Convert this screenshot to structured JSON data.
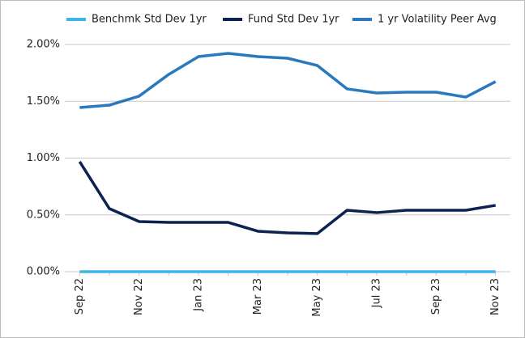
{
  "chart_data": {
    "type": "line",
    "categories": [
      "Sep 22",
      null,
      "Nov 22",
      null,
      "Jan 23",
      null,
      "Mar 23",
      null,
      "May 23",
      null,
      "Jul 23",
      null,
      "Sep 23",
      null,
      "Nov 23"
    ],
    "series": [
      {
        "name": "Benchmk Std Dev 1yr",
        "color": "#3fb4e6",
        "values": [
          0,
          0,
          0,
          0,
          0,
          0,
          0,
          0,
          0,
          0,
          0,
          0,
          0,
          0,
          0
        ]
      },
      {
        "name": "Fund Std Dev 1yr",
        "color": "#0c2352",
        "values": [
          0.968,
          0.555,
          0.441,
          0.434,
          0.434,
          0.434,
          0.356,
          0.342,
          0.335,
          0.541,
          0.52,
          0.541,
          0.541,
          0.541,
          0.584
        ]
      },
      {
        "name": "1 yr Volatility Peer Avg",
        "color": "#2a78bd",
        "values": [
          1.445,
          1.466,
          1.545,
          1.737,
          1.893,
          1.922,
          1.893,
          1.879,
          1.815,
          1.609,
          1.573,
          1.58,
          1.58,
          1.537,
          1.673
        ]
      }
    ],
    "ylim": [
      0,
      2
    ],
    "yticks": [
      {
        "value": 0,
        "label": "0.00%"
      },
      {
        "value": 0.5,
        "label": "0.50%"
      },
      {
        "value": 1,
        "label": "1.00%"
      },
      {
        "value": 1.5,
        "label": "1.50%"
      },
      {
        "value": 2,
        "label": "2.00%"
      }
    ],
    "grid": true,
    "legend": "top"
  }
}
